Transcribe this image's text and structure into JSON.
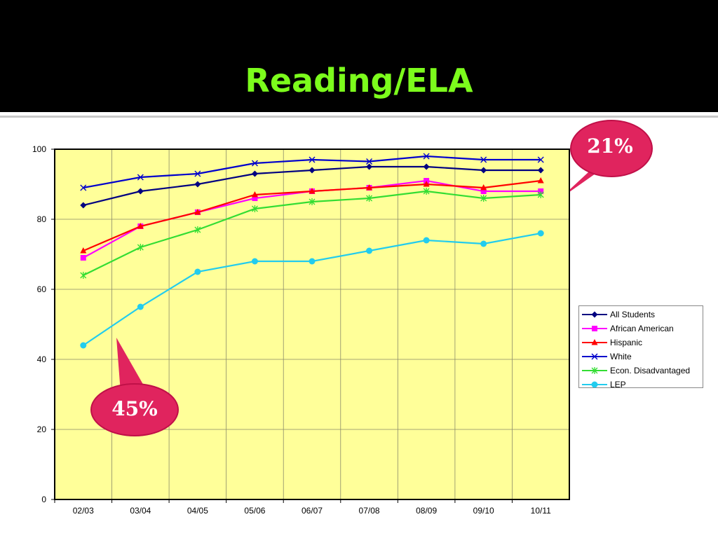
{
  "slide": {
    "title": "Reading/ELA"
  },
  "callouts": [
    {
      "text": "21%"
    },
    {
      "text": "45%"
    }
  ],
  "colors": {
    "title": "#7cfc1c",
    "plot_background": "#ffff99",
    "callout": "#e0245e"
  },
  "chart_data": {
    "type": "line",
    "title": "",
    "xlabel": "",
    "ylabel": "",
    "ylim": [
      0,
      100
    ],
    "yticks": [
      0,
      20,
      40,
      60,
      80,
      100
    ],
    "grid": true,
    "legend_position": "right",
    "categories": [
      "02/03",
      "03/04",
      "04/05",
      "05/06",
      "06/07",
      "07/08",
      "08/09",
      "09/10",
      "10/11"
    ],
    "series": [
      {
        "name": "All Students",
        "color": "#000080",
        "marker": "diamond",
        "values": [
          84,
          88,
          90,
          93,
          94,
          95,
          95,
          94,
          94
        ]
      },
      {
        "name": "African American",
        "color": "#ff00ff",
        "marker": "square",
        "values": [
          69,
          78,
          82,
          86,
          88,
          89,
          91,
          88,
          88
        ]
      },
      {
        "name": "Hispanic",
        "color": "#ff0000",
        "marker": "triangle",
        "values": [
          71,
          78,
          82,
          87,
          88,
          89,
          90,
          89,
          91
        ]
      },
      {
        "name": "White",
        "color": "#0000cc",
        "marker": "x",
        "values": [
          89,
          92,
          93,
          96,
          97,
          96.5,
          98,
          97,
          97
        ]
      },
      {
        "name": "Econ. Disadvantaged",
        "color": "#33dd33",
        "marker": "star",
        "values": [
          64,
          72,
          77,
          83,
          85,
          86,
          88,
          86,
          87
        ]
      },
      {
        "name": "LEP",
        "color": "#22ccee",
        "marker": "circle",
        "values": [
          44,
          55,
          65,
          68,
          68,
          71,
          74,
          73,
          76
        ]
      }
    ]
  }
}
